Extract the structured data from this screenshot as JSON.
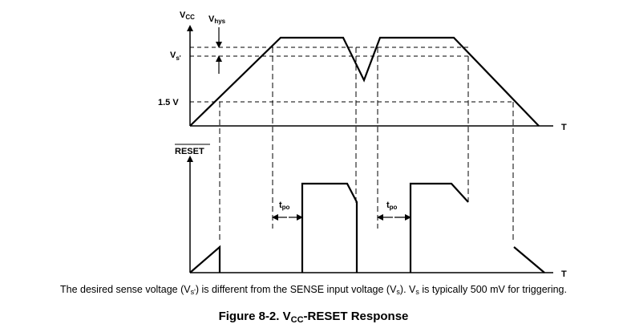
{
  "labels": {
    "vcc_main": "V",
    "vcc_sub": "CC",
    "vhys_main": "V",
    "vhys_sub": "hys",
    "vs_main": "V",
    "vs_sub": "s'",
    "v15": "1.5 V",
    "t_top": "T",
    "t_bottom": "T",
    "reset": "RESET",
    "tpo1_main": "t",
    "tpo1_sub": "po",
    "tpo2_main": "t",
    "tpo2_sub": "po"
  },
  "note": {
    "p1": "The desired sense voltage (V",
    "s1": "s'",
    "p2": ") is different from the SENSE input voltage (V",
    "s2": "s",
    "p3": "). V",
    "s3": "s",
    "p4": " is typically 500 mV for triggering."
  },
  "figure": {
    "p1": "Figure 8-2. V",
    "s1": "CC",
    "p2": "-RESET Response"
  }
}
